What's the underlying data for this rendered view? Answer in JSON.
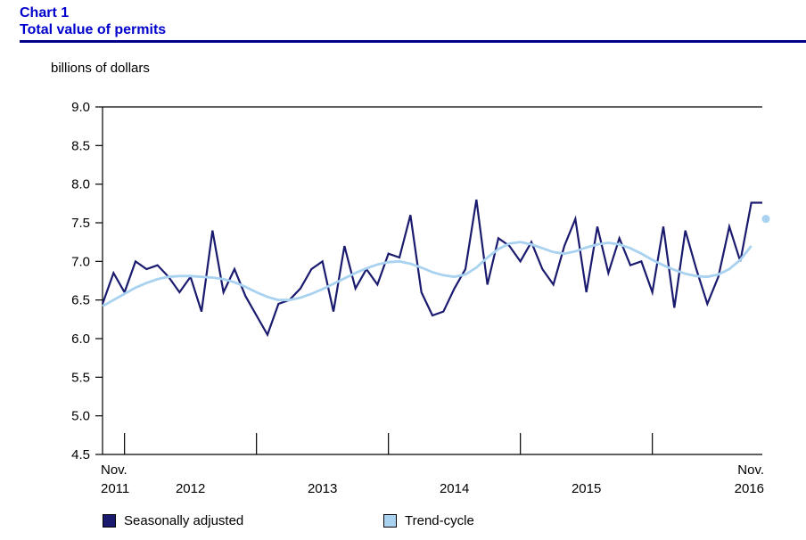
{
  "header": {
    "chart_label": "Chart 1",
    "title": "Total value of permits"
  },
  "unit_label": "billions of dollars",
  "colors": {
    "title_blue": "#0000cc",
    "rule_navy": "#00008b",
    "seasonally_adjusted": "#1a1a6e",
    "trend_cycle": "#a8d2f0",
    "axis": "#000000"
  },
  "legend": {
    "items": [
      {
        "label": "Seasonally adjusted",
        "swatch_color": "#1a1a6e"
      },
      {
        "label": "Trend-cycle",
        "swatch_color": "#a8d2f0"
      }
    ]
  },
  "chart_data": {
    "type": "line",
    "title": "Total value of permits",
    "unit": "billions of dollars",
    "ylim": [
      4.5,
      9.0
    ],
    "ytick_labels_top_to_bottom": [
      "9.0",
      "8.5",
      "8.0",
      "7.5",
      "7.0",
      "6.5",
      "6.0",
      "5.5",
      "5.0",
      "4.5"
    ],
    "x_frequency": "monthly",
    "x_range": "Nov. 2011 to Nov. 2016",
    "x_axis": {
      "start_label": [
        "Nov.",
        "2011"
      ],
      "year_labels": [
        "2012",
        "2013",
        "2014",
        "2015"
      ],
      "end_label": [
        "Nov.",
        "2016"
      ],
      "year_boundary_indices": [
        2,
        14,
        26,
        38,
        50
      ]
    },
    "grid": false,
    "legend_position": "bottom",
    "series": [
      {
        "name": "Seasonally adjusted",
        "color": "#1a1a6e",
        "style": "solid",
        "values": [
          6.45,
          6.85,
          6.6,
          7.0,
          6.9,
          6.95,
          6.8,
          6.6,
          6.8,
          6.35,
          7.4,
          6.6,
          6.9,
          6.55,
          6.3,
          6.05,
          6.45,
          6.5,
          6.65,
          6.9,
          7.0,
          6.35,
          7.2,
          6.65,
          6.9,
          6.7,
          7.1,
          7.05,
          7.6,
          6.6,
          6.3,
          6.35,
          6.65,
          6.9,
          7.8,
          6.7,
          7.3,
          7.2,
          7.0,
          7.25,
          6.9,
          6.7,
          7.2,
          7.55,
          6.6,
          7.45,
          6.85,
          7.3,
          6.95,
          7.0,
          6.6,
          7.45,
          6.4,
          7.4,
          6.9,
          6.45,
          6.8,
          7.45,
          7.0,
          7.76,
          7.76
        ]
      },
      {
        "name": "Trend-cycle",
        "color": "#a8d2f0",
        "style": "solid-with-end-dot",
        "values": [
          6.42,
          6.5,
          6.58,
          6.66,
          6.72,
          6.77,
          6.8,
          6.81,
          6.81,
          6.8,
          6.79,
          6.77,
          6.73,
          6.67,
          6.6,
          6.54,
          6.5,
          6.5,
          6.53,
          6.58,
          6.64,
          6.71,
          6.78,
          6.85,
          6.91,
          6.96,
          6.99,
          7.0,
          6.97,
          6.92,
          6.86,
          6.82,
          6.8,
          6.83,
          6.92,
          7.05,
          7.16,
          7.23,
          7.25,
          7.22,
          7.17,
          7.12,
          7.1,
          7.13,
          7.18,
          7.22,
          7.24,
          7.22,
          7.17,
          7.1,
          7.02,
          6.95,
          6.89,
          6.84,
          6.81,
          6.8,
          6.83,
          6.9,
          7.02,
          7.2,
          7.55
        ]
      }
    ]
  }
}
